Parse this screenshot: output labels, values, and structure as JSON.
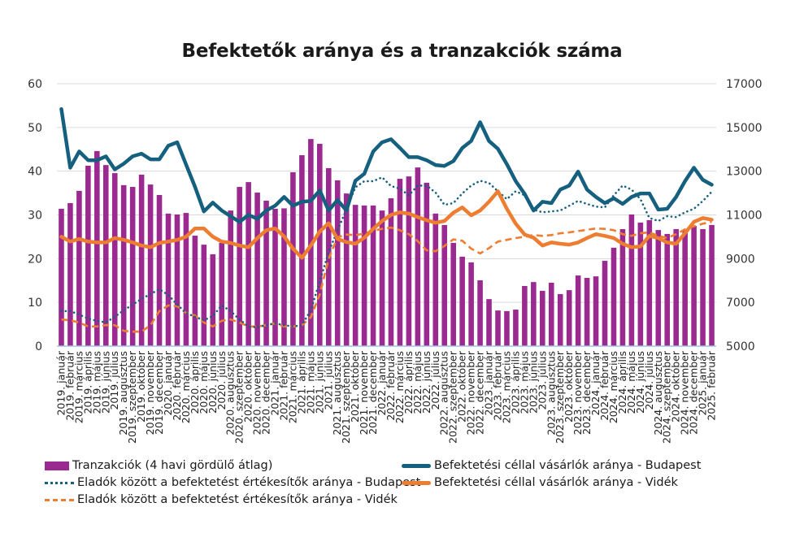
{
  "chart_data": {
    "type": "bar+line",
    "title": "Befektetők aránya és a tranzakciók száma",
    "xlabel": "",
    "ylabel_left": "",
    "ylabel_right": "",
    "ylim_left": [
      0,
      60
    ],
    "ylim_right": [
      5000,
      17000
    ],
    "yticks_left": [
      "0",
      "10",
      "20",
      "30",
      "40",
      "50",
      "60"
    ],
    "yticks_right": [
      "5000",
      "7000",
      "9000",
      "11000",
      "13000",
      "15000",
      "17000"
    ],
    "grid": true,
    "legend_position": "bottom",
    "categories": [
      "2019. január",
      "2019. február",
      "2019. március",
      "2019. április",
      "2019. május",
      "2019. június",
      "2019. július",
      "2019. augusztus",
      "2019. szeptember",
      "2019. október",
      "2019. november",
      "2019. december",
      "2020. január",
      "2020. február",
      "2020. március",
      "2020. április",
      "2020. május",
      "2020. június",
      "2020. július",
      "2020. augusztus",
      "2020. szeptember",
      "2020. október",
      "2020. november",
      "2020. december",
      "2021. január",
      "2021. február",
      "2021. március",
      "2021. április",
      "2021. május",
      "2021. június",
      "2021. július",
      "2021. augusztus",
      "2021. szeptember",
      "2021. október",
      "2021. november",
      "2021. december",
      "2022. január",
      "2022. február",
      "2022. március",
      "2022. április",
      "2022. május",
      "2022. június",
      "2022. július",
      "2022. augusztus",
      "2022. szeptember",
      "2022. október",
      "2022. november",
      "2022. december",
      "2023. január",
      "2023. február",
      "2023. március",
      "2023. április",
      "2023. május",
      "2023. június",
      "2023. július",
      "2023. augusztus",
      "2023. szeptember",
      "2023. október",
      "2023. november",
      "2023. december",
      "2024. január",
      "2024. február",
      "2024. március",
      "2024. április",
      "2024. május",
      "2024. június",
      "2024. július",
      "2024. augusztus",
      "2024. szeptember",
      "2024. október",
      "2024. november",
      "2024. december",
      "2025. január",
      "2025. február"
    ],
    "series": [
      {
        "name": "Tranzakciók (4 havi gördülő átlag)",
        "type": "bar",
        "axis": "right",
        "color": "#9B2A90",
        "values": [
          11280,
          11540,
          12100,
          13250,
          13920,
          13280,
          12910,
          12360,
          12280,
          12840,
          12390,
          11910,
          11060,
          11020,
          11090,
          10050,
          9640,
          9200,
          9720,
          11200,
          12280,
          12500,
          12020,
          11650,
          11280,
          11300,
          12950,
          13730,
          14470,
          14250,
          13140,
          12580,
          11980,
          11460,
          11430,
          11430,
          11200,
          11760,
          12650,
          12760,
          13170,
          12470,
          11060,
          10540,
          9720,
          9090,
          8830,
          8010,
          7150,
          6630,
          6600,
          6670,
          7750,
          7930,
          7530,
          7900,
          7380,
          7560,
          8230,
          8120,
          8190,
          8900,
          9500,
          10350,
          11020,
          10650,
          10760,
          10310,
          10130,
          10350,
          10280,
          10500,
          10350,
          10540
        ]
      },
      {
        "name": "Befektetési céllal vásárlók aránya - Budapest",
        "type": "line",
        "style": "solid",
        "axis": "left",
        "color": "#16607F",
        "values": [
          54.2,
          40.8,
          44.5,
          42.5,
          42.5,
          43.4,
          40.4,
          41.7,
          43.4,
          44.0,
          42.7,
          42.7,
          45.8,
          46.6,
          41.5,
          36.4,
          30.8,
          32.8,
          31.0,
          29.7,
          28.4,
          30.0,
          29.1,
          31.0,
          32.1,
          34.1,
          32.1,
          33.0,
          33.2,
          35.6,
          31.0,
          33.4,
          31.0,
          37.8,
          39.4,
          44.5,
          46.6,
          47.3,
          45.3,
          43.2,
          43.2,
          42.5,
          41.4,
          41.2,
          42.3,
          45.3,
          46.9,
          51.2,
          46.9,
          45.1,
          41.6,
          37.7,
          34.8,
          31.0,
          33.0,
          32.7,
          35.8,
          36.7,
          39.9,
          35.8,
          34.1,
          32.7,
          33.8,
          32.5,
          34.1,
          34.9,
          34.9,
          31.2,
          31.4,
          34.1,
          37.7,
          40.8,
          38.0,
          36.9
        ]
      },
      {
        "name": "Eladók között a befektetést értékesítők aránya - Budapest",
        "type": "line",
        "style": "dotted",
        "axis": "left",
        "color": "#16607F",
        "values": [
          8.0,
          8.0,
          7.2,
          6.3,
          5.8,
          5.4,
          6.7,
          8.2,
          9.5,
          10.8,
          11.9,
          13.0,
          11.7,
          9.5,
          7.6,
          6.7,
          5.9,
          6.9,
          9.3,
          8.0,
          6.1,
          4.5,
          4.3,
          4.8,
          5.2,
          4.8,
          4.5,
          4.8,
          8.2,
          14.8,
          21.5,
          26.5,
          31.2,
          36.3,
          37.7,
          37.7,
          38.6,
          36.6,
          36.0,
          34.5,
          36.7,
          36.7,
          35.1,
          32.3,
          32.7,
          34.9,
          36.7,
          37.8,
          37.3,
          35.4,
          33.6,
          35.4,
          34.5,
          31.2,
          30.6,
          30.8,
          31.0,
          32.1,
          33.2,
          32.5,
          31.9,
          31.7,
          34.5,
          36.7,
          35.8,
          33.6,
          29.3,
          28.6,
          29.7,
          29.5,
          30.6,
          31.4,
          33.2,
          35.3
        ]
      },
      {
        "name": "Befektetési céllal vásárlók aránya - Vidék",
        "type": "line",
        "style": "solid",
        "axis": "left",
        "color": "#ED7D31",
        "values": [
          25.0,
          23.9,
          24.5,
          23.9,
          23.7,
          23.7,
          24.7,
          24.3,
          23.7,
          23.0,
          22.6,
          23.6,
          23.9,
          24.3,
          25.0,
          26.9,
          26.9,
          25.0,
          23.9,
          23.6,
          23.0,
          22.6,
          24.7,
          26.5,
          26.9,
          25.1,
          22.3,
          20.2,
          23.0,
          26.2,
          28.1,
          24.5,
          23.8,
          23.4,
          24.8,
          26.8,
          28.6,
          30.0,
          30.6,
          30.3,
          29.5,
          28.8,
          28.2,
          28.6,
          30.5,
          31.7,
          29.9,
          31.0,
          33.0,
          35.4,
          31.4,
          28.0,
          25.5,
          24.8,
          23.0,
          23.7,
          23.4,
          23.2,
          23.7,
          24.7,
          25.6,
          25.2,
          24.7,
          23.4,
          22.6,
          22.8,
          25.2,
          24.7,
          23.7,
          23.4,
          25.8,
          28.4,
          29.3,
          28.9
        ]
      },
      {
        "name": "Eladók között a befektetést értékesítők aránya - Vidék",
        "type": "line",
        "style": "dashed",
        "axis": "left",
        "color": "#ED7D31",
        "values": [
          6.1,
          5.9,
          5.4,
          4.5,
          4.5,
          4.8,
          4.8,
          3.5,
          3.3,
          3.3,
          4.8,
          8.0,
          9.3,
          9.1,
          7.6,
          7.0,
          5.4,
          4.5,
          5.8,
          6.1,
          5.4,
          4.5,
          4.5,
          4.8,
          5.2,
          4.5,
          4.5,
          4.8,
          6.6,
          11.8,
          20.0,
          24.9,
          25.5,
          25.4,
          25.7,
          26.4,
          26.8,
          27.1,
          26.5,
          25.6,
          24.0,
          21.9,
          21.7,
          22.9,
          24.4,
          24.1,
          22.3,
          21.2,
          22.4,
          23.9,
          24.3,
          24.7,
          25.0,
          25.4,
          25.2,
          25.4,
          25.8,
          26.0,
          26.3,
          26.6,
          26.9,
          26.8,
          26.5,
          25.6,
          25.2,
          25.8,
          26.0,
          25.2,
          24.7,
          25.6,
          26.7,
          27.4,
          28.0,
          28.4
        ]
      }
    ]
  },
  "legend": {
    "items": [
      {
        "label": "Tranzakciók (4 havi gördülő átlag)",
        "kind": "bar",
        "color": "#9B2A90"
      },
      {
        "label": "Befektetési céllal vásárlók aránya - Budapest",
        "kind": "solid",
        "color": "#16607F"
      },
      {
        "label": "Eladók között a befektetést értékesítők aránya - Budapest",
        "kind": "dotted",
        "color": "#16607F"
      },
      {
        "label": "Befektetési céllal vásárlók aránya - Vidék",
        "kind": "solid",
        "color": "#ED7D31"
      },
      {
        "label": "Eladók között a befektetést értékesítők aránya - Vidék",
        "kind": "dashed",
        "color": "#ED7D31"
      }
    ]
  }
}
